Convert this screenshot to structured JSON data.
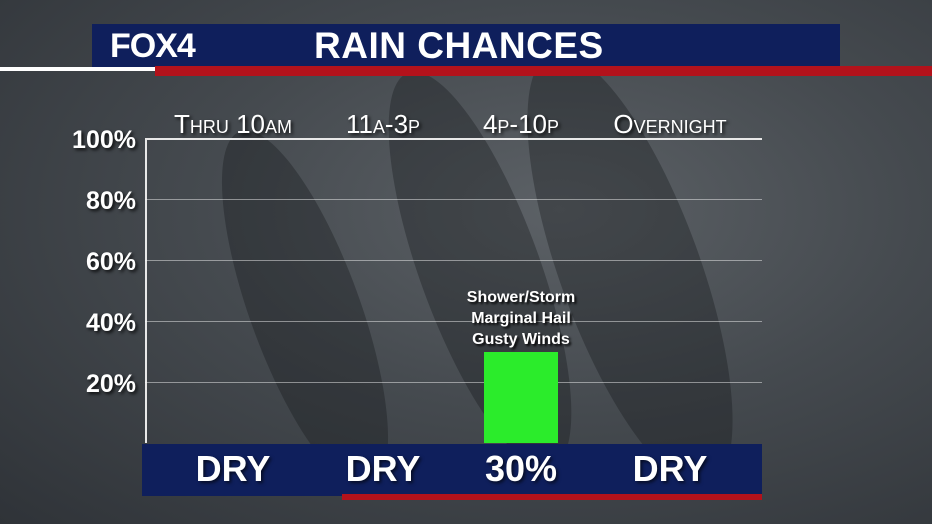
{
  "header": {
    "logo": "FOX4",
    "title": "RAIN CHANCES"
  },
  "colors": {
    "header_bg": "#0f1f5c",
    "accent_red": "#b3121b",
    "bar_green": "#2bec2b"
  },
  "chart_data": {
    "type": "bar",
    "title": "RAIN CHANCES",
    "categories": [
      "Thru 10am",
      "11a-3p",
      "4p-10p",
      "Overnight"
    ],
    "values": [
      0,
      0,
      30,
      0
    ],
    "value_labels": [
      "DRY",
      "DRY",
      "30%",
      "DRY"
    ],
    "yticks": [
      "20%",
      "40%",
      "60%",
      "80%",
      "100%"
    ],
    "ylim": [
      0,
      100
    ],
    "grid": true,
    "annotations": [
      {
        "category": "4p-10p",
        "lines": [
          "Shower/Storm",
          "Marginal Hail",
          "Gusty Winds"
        ]
      }
    ]
  }
}
